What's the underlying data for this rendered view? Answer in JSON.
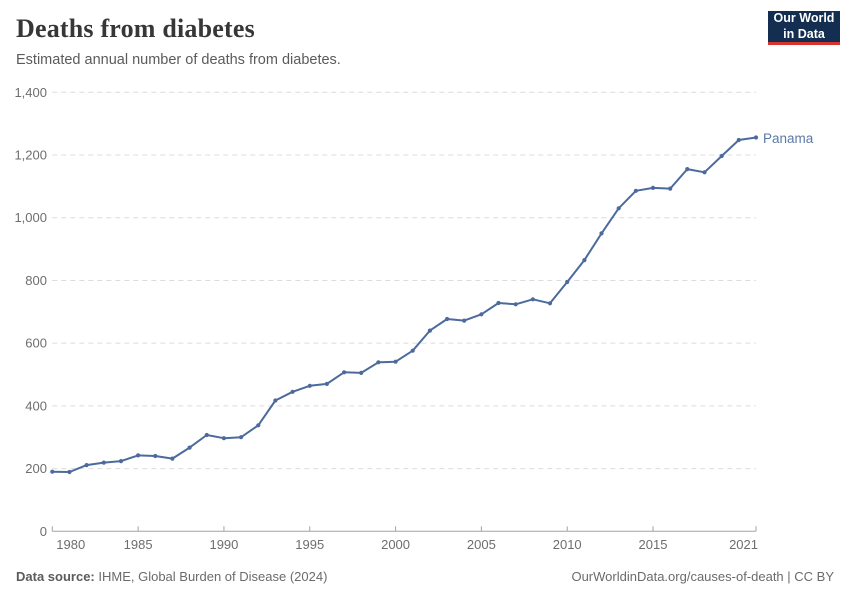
{
  "header": {
    "title": "Deaths from diabetes",
    "subtitle": "Estimated annual number of deaths from diabetes.",
    "logo": {
      "line1": "Our World",
      "line2": "in Data"
    }
  },
  "footer": {
    "source_label": "Data source:",
    "source_text": " IHME, Global Burden of Disease (2024)",
    "link_text": "OurWorldinData.org/causes-of-death | CC BY"
  },
  "colors": {
    "series_line": "#4c6a9c",
    "entity_label": "#5b79a8",
    "gridline": "#dcdcdc",
    "axis": "#a3a3a3",
    "tick_text": "#6e6e6e",
    "logo_bg": "#132e50",
    "logo_red": "#d7342f"
  },
  "chart_data": {
    "type": "line",
    "title": "Deaths from diabetes",
    "subtitle": "Estimated annual number of deaths from diabetes.",
    "xlabel": "",
    "ylabel": "",
    "xlim": [
      1980,
      2021
    ],
    "ylim": [
      0,
      1400
    ],
    "grid": "horizontal-dashed",
    "legend_position": "end-of-line-label",
    "x_ticks": [
      1980,
      1985,
      1990,
      1995,
      2000,
      2005,
      2010,
      2015,
      2021
    ],
    "y_ticks": [
      0,
      200,
      400,
      600,
      800,
      1000,
      1200,
      1400
    ],
    "y_tick_labels": [
      "0",
      "200",
      "400",
      "600",
      "800",
      "1,000",
      "1,200",
      "1,400"
    ],
    "entity_label": "Panama",
    "series": [
      {
        "name": "Panama",
        "color": "#4c6a9c",
        "x": [
          1980,
          1981,
          1982,
          1983,
          1984,
          1985,
          1986,
          1987,
          1988,
          1989,
          1990,
          1991,
          1992,
          1993,
          1994,
          1995,
          1996,
          1997,
          1998,
          1999,
          2000,
          2001,
          2002,
          2003,
          2004,
          2005,
          2006,
          2007,
          2008,
          2009,
          2010,
          2011,
          2012,
          2013,
          2014,
          2015,
          2016,
          2017,
          2018,
          2019,
          2020,
          2021
        ],
        "values": [
          190,
          189,
          211,
          219,
          224,
          242,
          240,
          232,
          267,
          307,
          297,
          300,
          338,
          417,
          445,
          464,
          470,
          507,
          505,
          539,
          541,
          576,
          640,
          677,
          672,
          692,
          728,
          724,
          740,
          727,
          795,
          865,
          950,
          1030,
          1086,
          1095,
          1093,
          1155,
          1145,
          1197,
          1248,
          1256
        ]
      }
    ]
  }
}
